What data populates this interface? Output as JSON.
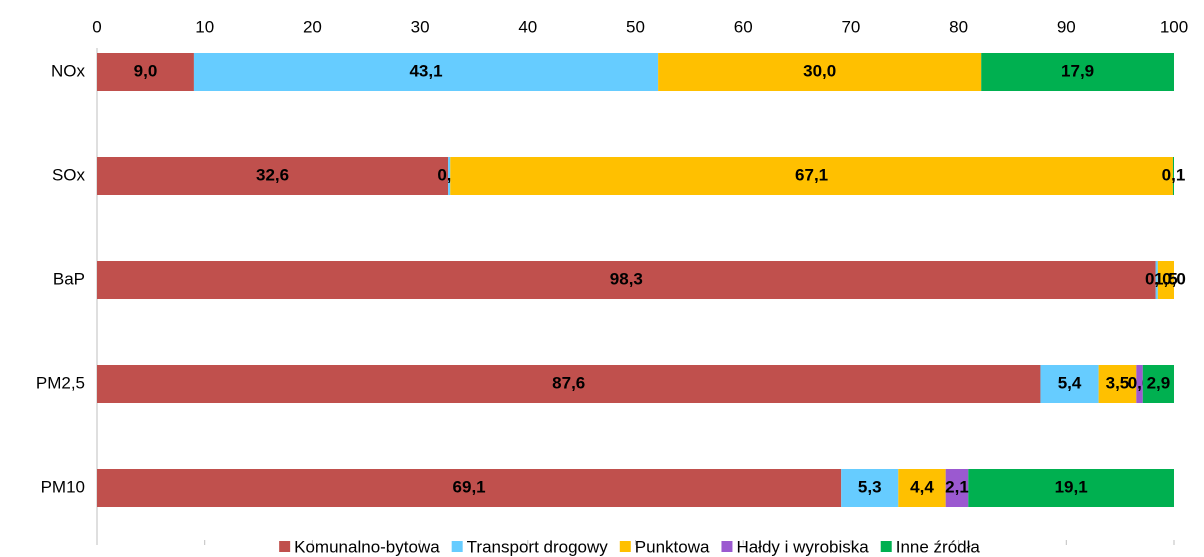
{
  "chart_data": {
    "type": "stacked_barh",
    "categories": [
      "NOx",
      "SOx",
      "BaP",
      "PM2,5",
      "PM10"
    ],
    "series": [
      {
        "name": "Komunalno-bytowa",
        "color": "#c0504d",
        "values": [
          9.0,
          32.6,
          98.3,
          87.6,
          69.1
        ],
        "value_labels": [
          "9,0",
          "32,6",
          "98,3",
          "87,6",
          "69,1"
        ]
      },
      {
        "name": "Transport drogowy",
        "color": "#66ccff",
        "values": [
          43.1,
          0.2,
          0.2,
          5.4,
          5.3
        ],
        "value_labels": [
          "43,1",
          "0,2",
          "0,2",
          "5,4",
          "5,3"
        ]
      },
      {
        "name": "Punktowa",
        "color": "#ffc000",
        "values": [
          30.0,
          67.1,
          1.5,
          3.5,
          4.4
        ],
        "value_labels": [
          "30,0",
          "67,1",
          "1,5",
          "3,5",
          "4,4"
        ]
      },
      {
        "name": "Hałdy i wyrobiska",
        "color": "#9b59d0",
        "values": [
          null,
          null,
          null,
          0.6,
          2.1
        ],
        "value_labels": [
          null,
          null,
          null,
          "0,6",
          "2,1"
        ]
      },
      {
        "name": "Inne źródła",
        "color": "#00b050",
        "values": [
          17.9,
          0.1,
          0.0,
          2.9,
          19.1
        ],
        "value_labels": [
          "17,9",
          "0,1",
          "0,0",
          "2,9",
          "19,1"
        ]
      }
    ],
    "xlim": [
      0,
      100
    ],
    "xticks": [
      0,
      10,
      20,
      30,
      40,
      50,
      60,
      70,
      80,
      90,
      100
    ],
    "legend": "bottom"
  }
}
